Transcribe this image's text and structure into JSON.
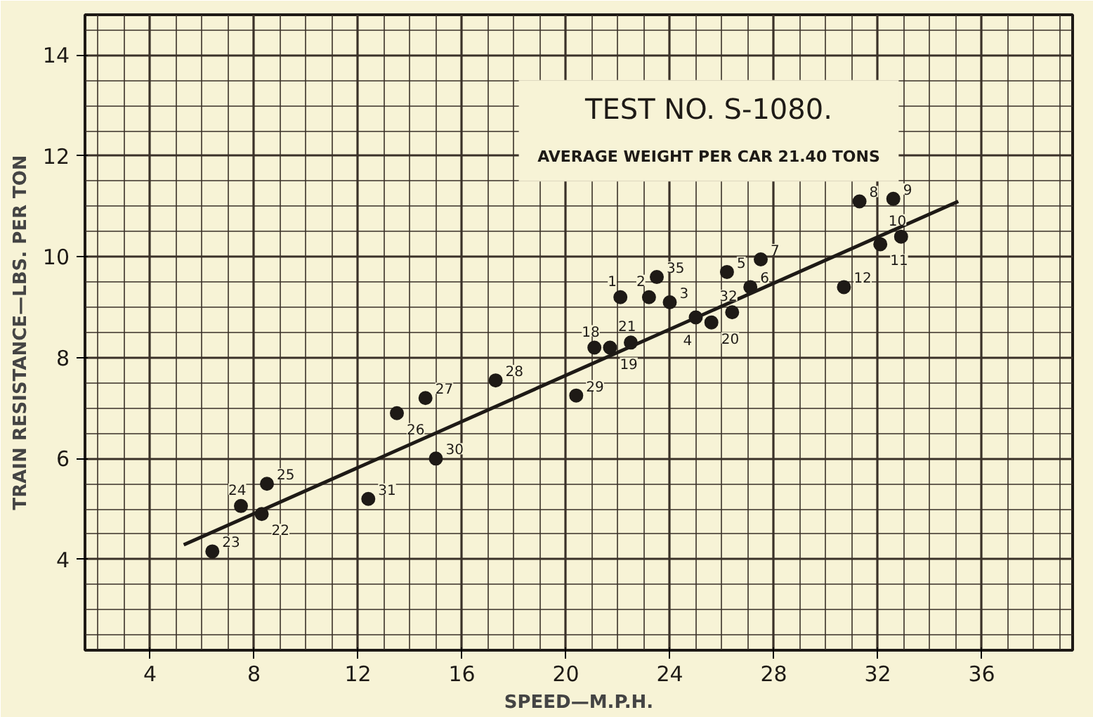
{
  "chart_data": {
    "type": "scatter",
    "title": "TEST NO. S-1080.",
    "subtitle": "AVERAGE WEIGHT PER CAR 21.40 TONS",
    "xlabel": "SPEED—M.P.H.",
    "ylabel": "TRAIN RESISTANCE—LBS. PER TON",
    "xlim": [
      1.5,
      39.5
    ],
    "ylim": [
      2.2,
      14.8
    ],
    "xticks": [
      4,
      8,
      12,
      16,
      20,
      24,
      28,
      32,
      36
    ],
    "yticks": [
      4,
      6,
      8,
      10,
      12,
      14
    ],
    "grid": true,
    "series": [
      {
        "marker": "circle",
        "color": "#1e1a16",
        "x": [
          6.4,
          7.5,
          8.3,
          8.5,
          12.4,
          13.5,
          14.6,
          15.0,
          17.3,
          20.4,
          21.1,
          21.7,
          22.5,
          22.1,
          23.2,
          23.5,
          24.0,
          25.0,
          25.6,
          26.2,
          26.4,
          27.1,
          27.5,
          30.7,
          31.3,
          32.1,
          32.6,
          32.9
        ],
        "values": [
          4.16,
          5.06,
          4.9,
          5.5,
          5.2,
          6.9,
          7.2,
          6.0,
          7.55,
          7.25,
          8.2,
          8.2,
          8.3,
          9.2,
          9.2,
          9.6,
          9.1,
          8.8,
          8.7,
          9.7,
          8.9,
          9.4,
          9.95,
          9.4,
          11.1,
          10.25,
          11.15,
          10.4
        ]
      },
      {
        "type": "line",
        "color": "#1e1a16",
        "x": [
          5.3,
          35.1
        ],
        "values": [
          4.29,
          11.1
        ]
      }
    ],
    "annotations": [
      {
        "text": "23",
        "x": 6.4,
        "y": 4.16
      },
      {
        "text": "24",
        "x": 7.5,
        "y": 5.06
      },
      {
        "text": "22",
        "x": 8.3,
        "y": 4.9
      },
      {
        "text": "25",
        "x": 8.5,
        "y": 5.5
      },
      {
        "text": "31",
        "x": 12.4,
        "y": 5.2
      },
      {
        "text": "26",
        "x": 13.5,
        "y": 6.9
      },
      {
        "text": "27",
        "x": 14.6,
        "y": 7.2
      },
      {
        "text": "30",
        "x": 15.0,
        "y": 6.0
      },
      {
        "text": "28",
        "x": 17.3,
        "y": 7.55
      },
      {
        "text": "29",
        "x": 20.4,
        "y": 7.25
      },
      {
        "text": "18",
        "x": 21.1,
        "y": 8.2
      },
      {
        "text": "19",
        "x": 21.7,
        "y": 8.2
      },
      {
        "text": "21",
        "x": 22.5,
        "y": 8.3
      },
      {
        "text": "1",
        "x": 22.1,
        "y": 9.2
      },
      {
        "text": "2",
        "x": 23.2,
        "y": 9.2
      },
      {
        "text": "35",
        "x": 23.5,
        "y": 9.6
      },
      {
        "text": "3",
        "x": 24.0,
        "y": 9.1
      },
      {
        "text": "4",
        "x": 25.0,
        "y": 8.8
      },
      {
        "text": "20",
        "x": 25.6,
        "y": 8.7
      },
      {
        "text": "5",
        "x": 26.2,
        "y": 9.7
      },
      {
        "text": "32",
        "x": 26.4,
        "y": 8.9
      },
      {
        "text": "6",
        "x": 27.1,
        "y": 9.4
      },
      {
        "text": "7",
        "x": 27.5,
        "y": 9.95
      },
      {
        "text": "12",
        "x": 30.7,
        "y": 9.4
      },
      {
        "text": "8",
        "x": 31.3,
        "y": 11.1
      },
      {
        "text": "11",
        "x": 32.1,
        "y": 10.25
      },
      {
        "text": "9",
        "x": 32.6,
        "y": 11.15
      },
      {
        "text": "10",
        "x": 32.9,
        "y": 10.4
      }
    ]
  }
}
